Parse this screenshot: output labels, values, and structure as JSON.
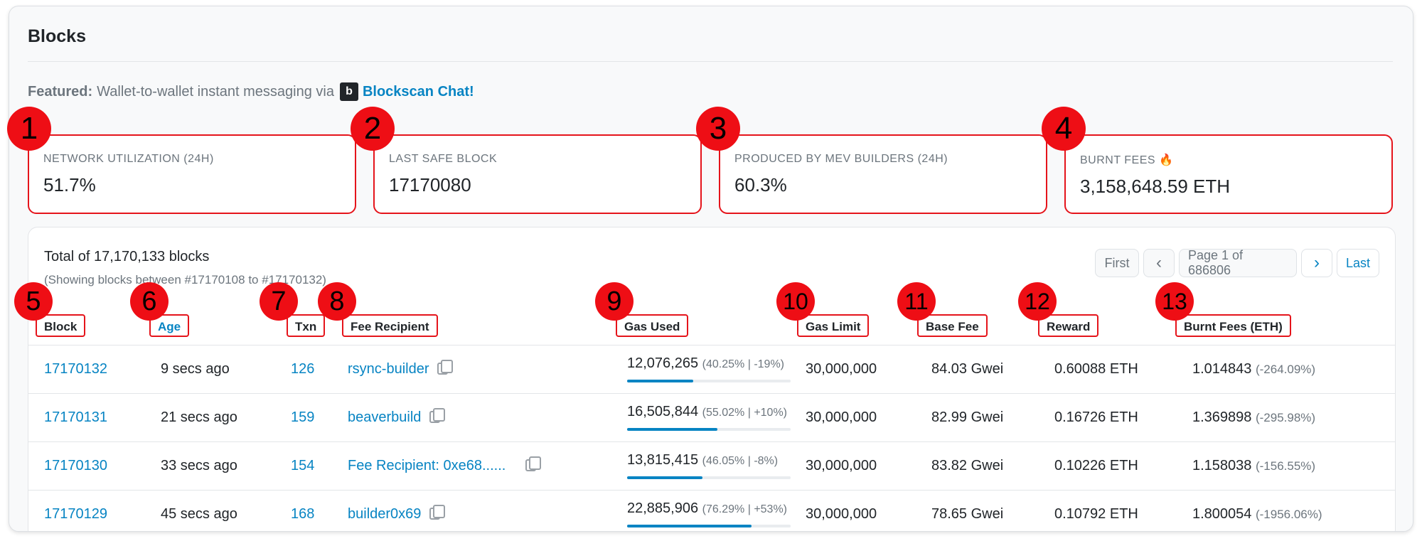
{
  "page": {
    "title": "Blocks"
  },
  "featured": {
    "prefix": "Featured:",
    "text": "Wallet-to-wallet instant messaging via",
    "logo": "b",
    "link": "Blockscan Chat!"
  },
  "stats": [
    {
      "badge": "1",
      "label": "NETWORK UTILIZATION (24H)",
      "value": "51.7%"
    },
    {
      "badge": "2",
      "label": "LAST SAFE BLOCK",
      "value": "17170080"
    },
    {
      "badge": "3",
      "label": "PRODUCED BY MEV BUILDERS (24H)",
      "value": "60.3%"
    },
    {
      "badge": "4",
      "label": "BURNT FEES 🔥",
      "value": "3,158,648.59 ETH"
    }
  ],
  "table": {
    "total": "Total of 17,170,133 blocks",
    "showing": "(Showing blocks between #17170108 to #17170132)",
    "pager": {
      "first": "First",
      "prev": "‹",
      "page": "Page 1 of 686806",
      "next": "›",
      "last": "Last"
    },
    "headers": [
      {
        "badge": "5",
        "label": "Block"
      },
      {
        "badge": "6",
        "label": "Age"
      },
      {
        "badge": "7",
        "label": "Txn"
      },
      {
        "badge": "8",
        "label": "Fee Recipient"
      },
      {
        "badge": "9",
        "label": "Gas Used"
      },
      {
        "badge": "10",
        "label": "Gas Limit"
      },
      {
        "badge": "11",
        "label": "Base Fee"
      },
      {
        "badge": "12",
        "label": "Reward"
      },
      {
        "badge": "13",
        "label": "Burnt Fees (ETH)"
      }
    ],
    "rows": [
      {
        "block": "17170132",
        "age": "9 secs ago",
        "txn": "126",
        "recipient": "rsync-builder",
        "gas": "12,076,265",
        "gas_detail": "(40.25% | -19%)",
        "gas_pct": 0.4025,
        "limit": "30,000,000",
        "base_fee": "84.03 Gwei",
        "reward": "0.60088 ETH",
        "burnt": "1.014843",
        "burnt_pct": "(-264.09%)"
      },
      {
        "block": "17170131",
        "age": "21 secs ago",
        "txn": "159",
        "recipient": "beaverbuild",
        "gas": "16,505,844",
        "gas_detail": "(55.02% | +10%)",
        "gas_pct": 0.5502,
        "limit": "30,000,000",
        "base_fee": "82.99 Gwei",
        "reward": "0.16726 ETH",
        "burnt": "1.369898",
        "burnt_pct": "(-295.98%)"
      },
      {
        "block": "17170130",
        "age": "33 secs ago",
        "txn": "154",
        "recipient": "Fee Recipient: 0xe68......",
        "gas": "13,815,415",
        "gas_detail": "(46.05% | -8%)",
        "gas_pct": 0.4605,
        "limit": "30,000,000",
        "base_fee": "83.82 Gwei",
        "reward": "0.10226 ETH",
        "burnt": "1.158038",
        "burnt_pct": "(-156.55%)"
      },
      {
        "block": "17170129",
        "age": "45 secs ago",
        "txn": "168",
        "recipient": "builder0x69",
        "gas": "22,885,906",
        "gas_detail": "(76.29% | +53%)",
        "gas_pct": 0.7629,
        "limit": "30,000,000",
        "base_fee": "78.65 Gwei",
        "reward": "0.10792 ETH",
        "burnt": "1.800054",
        "burnt_pct": "(-1956.06%)"
      }
    ]
  },
  "colors": {
    "accent": "#0784c3",
    "annotation_red": "#e5141b"
  }
}
